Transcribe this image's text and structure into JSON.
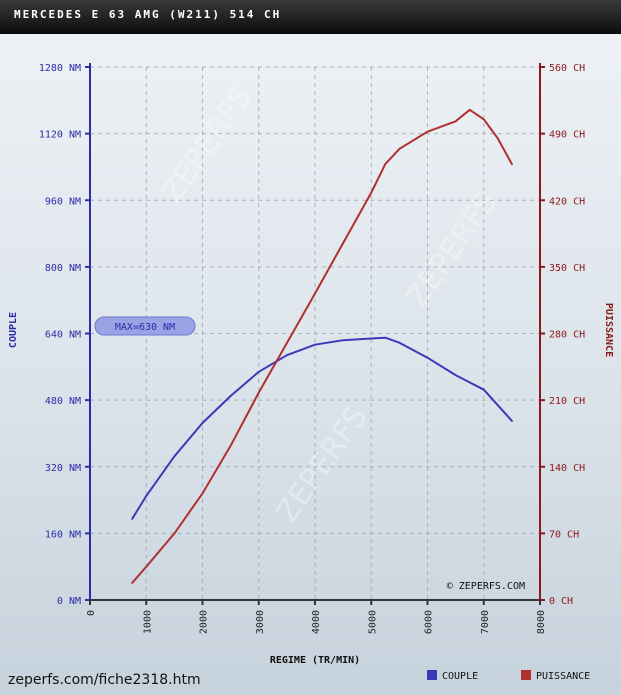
{
  "header": {
    "title": "MERCEDES E 63 AMG (W211) 514 CH"
  },
  "footer": {
    "url": "zeperfs.com/fiche2318.htm"
  },
  "chart_data": {
    "type": "line",
    "title": "MERCEDES E 63 AMG (W211) 514 CH",
    "xlabel": "REGIME (TR/MIN)",
    "ylabel_left": "COUPLE",
    "ylabel_right": "PUISSANCE",
    "xlim": [
      0,
      8000
    ],
    "ylim_left": [
      0,
      1280
    ],
    "ylim_right": [
      0,
      560
    ],
    "x_ticks": [
      "0",
      "1000",
      "2000",
      "3000",
      "4000",
      "5000",
      "6000",
      "7000",
      "8000"
    ],
    "y_ticks_left": [
      "0 NM",
      "160 NM",
      "320 NM",
      "480 NM",
      "640 NM",
      "800 NM",
      "960 NM",
      "1120 NM",
      "1280 NM"
    ],
    "y_ticks_right": [
      "0 CH",
      "70 CH",
      "140 CH",
      "210 CH",
      "280 CH",
      "350 CH",
      "420 CH",
      "490 CH",
      "560 CH"
    ],
    "grid": true,
    "annotation": "MAX=630 NM",
    "credit": "© ZEPERFS.COM",
    "watermark": "ZEPERFS",
    "colors": {
      "couple": "#3a3ab8",
      "puissance": "#b03030",
      "axis_left": "#2c2ca8",
      "axis_right": "#8b1a1a"
    },
    "legend": [
      {
        "name": "COUPLE",
        "color": "#3a3ab8"
      },
      {
        "name": "PUISSANCE",
        "color": "#b03030"
      }
    ],
    "series": [
      {
        "name": "COUPLE",
        "axis": "left",
        "color": "#3a3ab8",
        "x": [
          750,
          1000,
          1500,
          2000,
          2500,
          3000,
          3500,
          4000,
          4500,
          5000,
          5250,
          5500,
          6000,
          6500,
          7000,
          7500
        ],
        "y": [
          195,
          250,
          345,
          425,
          490,
          548,
          588,
          613,
          624,
          628,
          630,
          618,
          582,
          540,
          505,
          430
        ]
      },
      {
        "name": "PUISSANCE",
        "axis": "right",
        "color": "#b03030",
        "x": [
          750,
          1000,
          1500,
          2000,
          2500,
          3000,
          3500,
          4000,
          4500,
          5000,
          5250,
          5500,
          6000,
          6500,
          6750,
          7000,
          7250,
          7500
        ],
        "y": [
          18,
          35,
          70,
          112,
          162,
          218,
          270,
          322,
          375,
          428,
          458,
          474,
          492,
          503,
          515,
          505,
          485,
          458
        ]
      }
    ]
  }
}
